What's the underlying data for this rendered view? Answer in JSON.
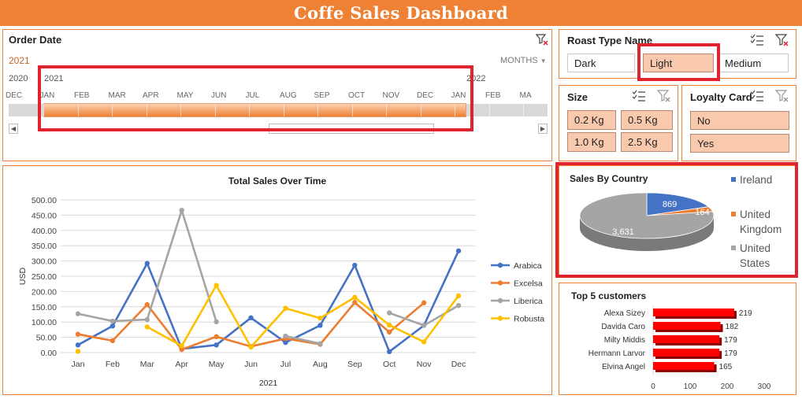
{
  "dashboard": {
    "title": "Coffe Sales Dashboard"
  },
  "timeline": {
    "title": "Order Date",
    "selected_label": "2021",
    "period_selector": "MONTHS",
    "years": [
      "2020",
      "2021",
      "2022"
    ],
    "months": [
      "DEC",
      "JAN",
      "FEB",
      "MAR",
      "APR",
      "MAY",
      "JUN",
      "JUL",
      "AUG",
      "SEP",
      "OCT",
      "NOV",
      "DEC",
      "JAN",
      "FEB",
      "MA"
    ]
  },
  "roast_slicer": {
    "title": "Roast Type Name",
    "items": [
      "Dark",
      "Light",
      "Medium"
    ],
    "selected": "Light"
  },
  "size_slicer": {
    "title": "Size",
    "items": [
      "0.2 Kg",
      "0.5 Kg",
      "1.0 Kg",
      "2.5 Kg"
    ]
  },
  "loyalty_slicer": {
    "title": "Loyalty Card",
    "items": [
      "No",
      "Yes"
    ]
  },
  "colors": {
    "accent": "#ee8133",
    "highlight": "#e0242f",
    "arabica": "#4472c4",
    "excelsa": "#ed7d31",
    "liberica": "#a5a5a5",
    "robusta": "#ffc000",
    "bar": "#ff0000"
  },
  "chart_data": [
    {
      "type": "line",
      "title": "Total Sales Over Time",
      "xlabel": "2021",
      "ylabel": "USD",
      "categories": [
        "Jan",
        "Feb",
        "Mar",
        "Apr",
        "May",
        "Jun",
        "Jul",
        "Aug",
        "Sep",
        "Oct",
        "Nov",
        "Dec"
      ],
      "ylim": [
        0,
        500
      ],
      "yticks": [
        "0.00",
        "50.00",
        "100.00",
        "150.00",
        "200.00",
        "250.00",
        "300.00",
        "350.00",
        "400.00",
        "450.00",
        "500.00"
      ],
      "legend": "right",
      "grid": true,
      "series": [
        {
          "name": "Arabica",
          "values": [
            25,
            87,
            292,
            12,
            25,
            114,
            33,
            89,
            286,
            3,
            89,
            333
          ]
        },
        {
          "name": "Excelsa",
          "values": [
            60,
            39,
            157,
            10,
            52,
            20,
            46,
            27,
            164,
            67,
            163,
            null
          ]
        },
        {
          "name": "Liberica",
          "values": [
            127,
            103,
            108,
            466,
            101,
            null,
            54,
            29,
            null,
            130,
            89,
            154
          ]
        },
        {
          "name": "Robusta",
          "values": [
            4,
            null,
            84,
            22,
            220,
            18,
            145,
            113,
            181,
            90,
            35,
            186
          ]
        }
      ]
    },
    {
      "type": "pie",
      "title": "Sales By Country",
      "labels": [
        "Ireland",
        "United Kingdom",
        "United States"
      ],
      "values": [
        869,
        164,
        3631
      ],
      "data_labels": [
        "869",
        "164",
        "3,631"
      ],
      "legend": "right"
    },
    {
      "type": "bar",
      "title": "Top 5 customers",
      "categories": [
        "Alexa Sizey",
        "Davida Caro",
        "Milty Middis",
        "Hermann Larvor",
        "Elvina Angel"
      ],
      "values": [
        219,
        182,
        179,
        179,
        165
      ],
      "xlim": [
        0,
        300
      ],
      "xticks": [
        "0",
        "100",
        "200",
        "300"
      ]
    }
  ]
}
